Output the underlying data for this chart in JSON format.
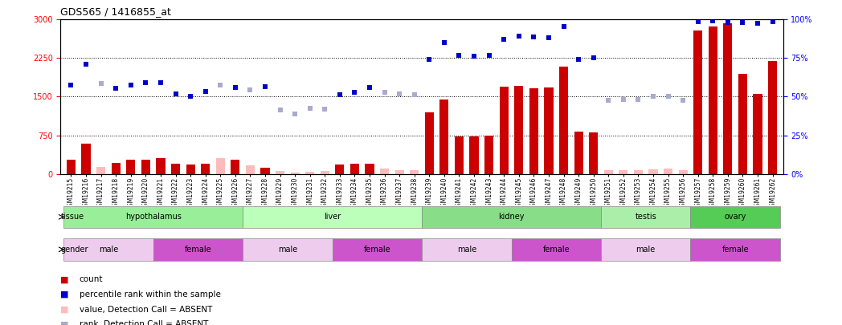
{
  "title": "GDS565 / 1416855_at",
  "samples": [
    "GSM19215",
    "GSM19216",
    "GSM19217",
    "GSM19218",
    "GSM19219",
    "GSM19220",
    "GSM19221",
    "GSM19222",
    "GSM19223",
    "GSM19224",
    "GSM19225",
    "GSM19226",
    "GSM19227",
    "GSM19228",
    "GSM19229",
    "GSM19230",
    "GSM19231",
    "GSM19232",
    "GSM19233",
    "GSM19234",
    "GSM19235",
    "GSM19236",
    "GSM19237",
    "GSM19238",
    "GSM19239",
    "GSM19240",
    "GSM19241",
    "GSM19242",
    "GSM19243",
    "GSM19244",
    "GSM19245",
    "GSM19246",
    "GSM19247",
    "GSM19248",
    "GSM19249",
    "GSM19250",
    "GSM19251",
    "GSM19252",
    "GSM19253",
    "GSM19254",
    "GSM19255",
    "GSM19256",
    "GSM19257",
    "GSM19258",
    "GSM19259",
    "GSM19260",
    "GSM19261",
    "GSM19262"
  ],
  "count_present": [
    280,
    590,
    null,
    220,
    270,
    275,
    300,
    190,
    185,
    200,
    null,
    280,
    null,
    120,
    null,
    null,
    null,
    null,
    185,
    195,
    200,
    null,
    null,
    null,
    1200,
    1440,
    730,
    730,
    750,
    1690,
    1710,
    1660,
    1680,
    2080,
    820,
    800,
    null,
    null,
    null,
    null,
    null,
    null,
    2780,
    2870,
    2920,
    1940,
    1560,
    2200
  ],
  "count_absent": [
    null,
    null,
    130,
    null,
    null,
    null,
    null,
    null,
    null,
    null,
    300,
    null,
    170,
    null,
    60,
    30,
    40,
    50,
    null,
    null,
    null,
    110,
    80,
    75,
    null,
    null,
    null,
    null,
    null,
    null,
    null,
    null,
    null,
    null,
    null,
    null,
    80,
    70,
    80,
    95,
    100,
    70,
    null,
    null,
    null,
    null,
    null,
    null
  ],
  "rank_present": [
    1720,
    2130,
    null,
    1660,
    1720,
    1780,
    1780,
    1560,
    1500,
    1600,
    null,
    1680,
    null,
    1700,
    null,
    null,
    null,
    null,
    1540,
    1590,
    1680,
    null,
    null,
    null,
    2230,
    2560,
    2310,
    2290,
    2300,
    2620,
    2680,
    2660,
    2640,
    2870,
    2230,
    2260,
    null,
    null,
    null,
    null,
    null,
    null,
    2960,
    2970,
    2950,
    2940,
    2930,
    2960
  ],
  "rank_absent": [
    null,
    null,
    1760,
    null,
    null,
    null,
    null,
    null,
    null,
    null,
    1720,
    null,
    1630,
    null,
    1240,
    1160,
    1280,
    1260,
    null,
    null,
    null,
    1580,
    1560,
    1540,
    null,
    null,
    null,
    null,
    null,
    null,
    null,
    null,
    null,
    null,
    null,
    null,
    1430,
    1440,
    1450,
    1510,
    1510,
    1430,
    null,
    null,
    null,
    null,
    null,
    null
  ],
  "ylim_left": [
    0,
    3000
  ],
  "ylim_right": [
    0,
    100
  ],
  "yticks_left": [
    0,
    750,
    1500,
    2250,
    3000
  ],
  "yticks_right": [
    0,
    25,
    50,
    75,
    100
  ],
  "hlines": [
    750,
    1500,
    2250
  ],
  "bar_color_present": "#cc0000",
  "bar_color_absent": "#ffbbbb",
  "rank_color_present": "#0000cc",
  "rank_color_absent": "#aaaacc",
  "tissues": [
    {
      "label": "hypothalamus",
      "start": 0,
      "end": 12,
      "color": "#99ee99"
    },
    {
      "label": "liver",
      "start": 12,
      "end": 24,
      "color": "#bbffbb"
    },
    {
      "label": "kidney",
      "start": 24,
      "end": 36,
      "color": "#88dd88"
    },
    {
      "label": "testis",
      "start": 36,
      "end": 42,
      "color": "#aaeeaa"
    },
    {
      "label": "ovary",
      "start": 42,
      "end": 48,
      "color": "#55cc55"
    }
  ],
  "genders": [
    {
      "label": "male",
      "start": 0,
      "end": 6,
      "color": "#eeccee"
    },
    {
      "label": "female",
      "start": 6,
      "end": 12,
      "color": "#cc55cc"
    },
    {
      "label": "male",
      "start": 12,
      "end": 18,
      "color": "#eeccee"
    },
    {
      "label": "female",
      "start": 18,
      "end": 24,
      "color": "#cc55cc"
    },
    {
      "label": "male",
      "start": 24,
      "end": 30,
      "color": "#eeccee"
    },
    {
      "label": "female",
      "start": 30,
      "end": 36,
      "color": "#cc55cc"
    },
    {
      "label": "male",
      "start": 36,
      "end": 42,
      "color": "#eeccee"
    },
    {
      "label": "female",
      "start": 42,
      "end": 48,
      "color": "#cc55cc"
    }
  ],
  "legend_items": [
    {
      "color": "#cc0000",
      "label": "count"
    },
    {
      "color": "#0000cc",
      "label": "percentile rank within the sample"
    },
    {
      "color": "#ffbbbb",
      "label": "value, Detection Call = ABSENT"
    },
    {
      "color": "#aaaacc",
      "label": "rank, Detection Call = ABSENT"
    }
  ],
  "bg_color": "#ffffff"
}
